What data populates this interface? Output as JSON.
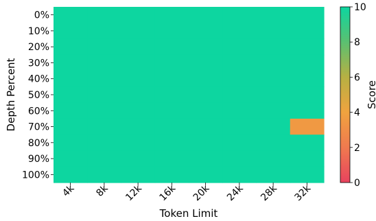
{
  "chart_data": {
    "type": "heatmap",
    "xlabel": "Token Limit",
    "ylabel": "Depth Percent",
    "x_categories": [
      "4k",
      "8k",
      "12k",
      "16k",
      "20k",
      "24k",
      "28k",
      "32k"
    ],
    "y_categories": [
      "0%",
      "10%",
      "20%",
      "30%",
      "40%",
      "50%",
      "60%",
      "70%",
      "80%",
      "90%",
      "100%"
    ],
    "values": [
      [
        10,
        10,
        10,
        10,
        10,
        10,
        10,
        10
      ],
      [
        10,
        10,
        10,
        10,
        10,
        10,
        10,
        10
      ],
      [
        10,
        10,
        10,
        10,
        10,
        10,
        10,
        10
      ],
      [
        10,
        10,
        10,
        10,
        10,
        10,
        10,
        10
      ],
      [
        10,
        10,
        10,
        10,
        10,
        10,
        10,
        10
      ],
      [
        10,
        10,
        10,
        10,
        10,
        10,
        10,
        10
      ],
      [
        10,
        10,
        10,
        10,
        10,
        10,
        10,
        10
      ],
      [
        10,
        10,
        10,
        10,
        10,
        10,
        10,
        3.5
      ],
      [
        10,
        10,
        10,
        10,
        10,
        10,
        10,
        10
      ],
      [
        10,
        10,
        10,
        10,
        10,
        10,
        10,
        10
      ],
      [
        10,
        10,
        10,
        10,
        10,
        10,
        10,
        10
      ]
    ],
    "colorbar": {
      "label": "Score",
      "range": [
        0,
        10
      ],
      "ticks": [
        "0",
        "2",
        "4",
        "6",
        "8",
        "10"
      ],
      "colors": [
        "#e8435e",
        "#ef7a4f",
        "#f0a33f",
        "#b7b043",
        "#5bc071",
        "#0dd6a0"
      ]
    },
    "grid": false,
    "legend": "none"
  }
}
